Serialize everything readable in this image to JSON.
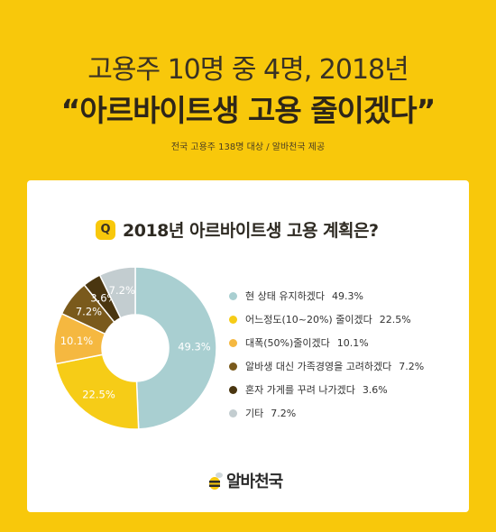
{
  "header": {
    "headline1": "고용주 10명 중 4명, 2018년",
    "headline2": "“아르바이트생 고용 줄이겠다”",
    "source": "전국 고용주 138명 대상 / 알바천국 제공"
  },
  "question": {
    "badge": "Q",
    "text": "2018년 아르바이트생 고용 계획은?"
  },
  "legend": [
    {
      "label": "현 상태 유지하겠다",
      "value": "49.3%"
    },
    {
      "label": "어느정도(10~20%) 줄이겠다",
      "value": "22.5%"
    },
    {
      "label": "대폭(50%)줄이겠다",
      "value": "10.1%"
    },
    {
      "label": "알바생 대신 가족경영을 고려하겠다",
      "value": "7.2%"
    },
    {
      "label": "혼자 가게를 꾸려 나가겠다",
      "value": "3.6%"
    },
    {
      "label": "기타",
      "value": "7.2%"
    }
  ],
  "logo": {
    "text": "알바천국"
  },
  "chart_data": {
    "type": "pie",
    "donut": true,
    "categories": [
      "현 상태 유지하겠다",
      "어느정도(10~20%) 줄이겠다",
      "대폭(50%)줄이겠다",
      "알바생 대신 가족경영을 고려하겠다",
      "혼자 가게를 꾸려 나가겠다",
      "기타"
    ],
    "values": [
      49.3,
      22.5,
      10.1,
      7.2,
      3.6,
      7.2
    ],
    "labels": [
      "49.3%",
      "22.5%",
      "10.1%",
      "7.2%",
      "3.6%",
      "7.2%"
    ],
    "colors": [
      "#a9cfd1",
      "#f6cc17",
      "#f5b840",
      "#7a5a1c",
      "#4a3610",
      "#c3cdd0"
    ],
    "label_colors": [
      "#ffffff",
      "#ffffff",
      "#ffffff",
      "#ffffff",
      "#ffffff",
      "#ffffff"
    ],
    "title": "2018년 아르바이트생 고용 계획은?",
    "legend_position": "right"
  }
}
